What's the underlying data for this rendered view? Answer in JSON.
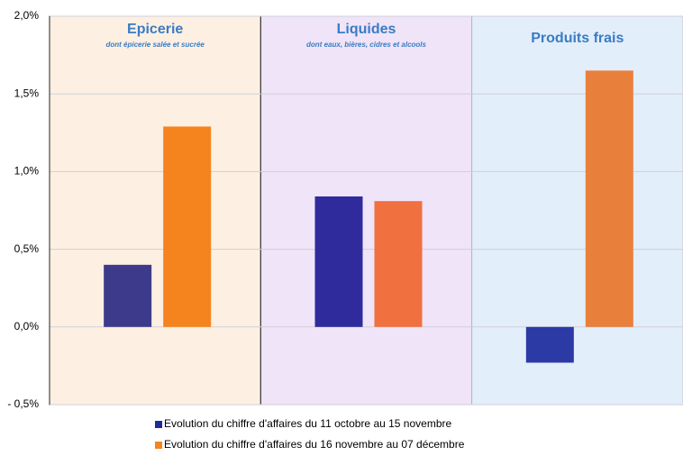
{
  "chart_data": {
    "type": "bar",
    "categories": [
      "Epicerie",
      "Liquides",
      "Produits frais"
    ],
    "subtitles": [
      "dont épicerie salée et sucrée",
      "dont eaux, bières, cidres et alcools",
      null
    ],
    "panel_colors": [
      "#fdf0e2",
      "#f0e4f8",
      "#e2eefa"
    ],
    "series": [
      {
        "name": "Evolution du chiffre d'affaires  du 11 octobre au 15 novembre",
        "color": "#1f2a9a",
        "colors": [
          "#3d3a8c",
          "#302b9c",
          "#2c3aa6"
        ],
        "values": [
          0.4,
          0.84,
          -0.23
        ]
      },
      {
        "name": "Evolution du chiffre d'affaires  du 16 novembre au 07 décembre",
        "color": "#f5841f",
        "colors": [
          "#f5841f",
          "#f07040",
          "#e8803c"
        ],
        "values": [
          1.29,
          0.81,
          1.65
        ]
      }
    ],
    "ylim": [
      -0.5,
      2.0
    ],
    "yticks": [
      {
        "value": 2.0,
        "label": "2,0%"
      },
      {
        "value": 1.5,
        "label": "1,5%"
      },
      {
        "value": 1.0,
        "label": "1,0%"
      },
      {
        "value": 0.5,
        "label": "0,5%"
      },
      {
        "value": 0.0,
        "label": "0,0%"
      },
      {
        "value": -0.5,
        "label": "- 0,5%"
      }
    ],
    "grid": true
  }
}
